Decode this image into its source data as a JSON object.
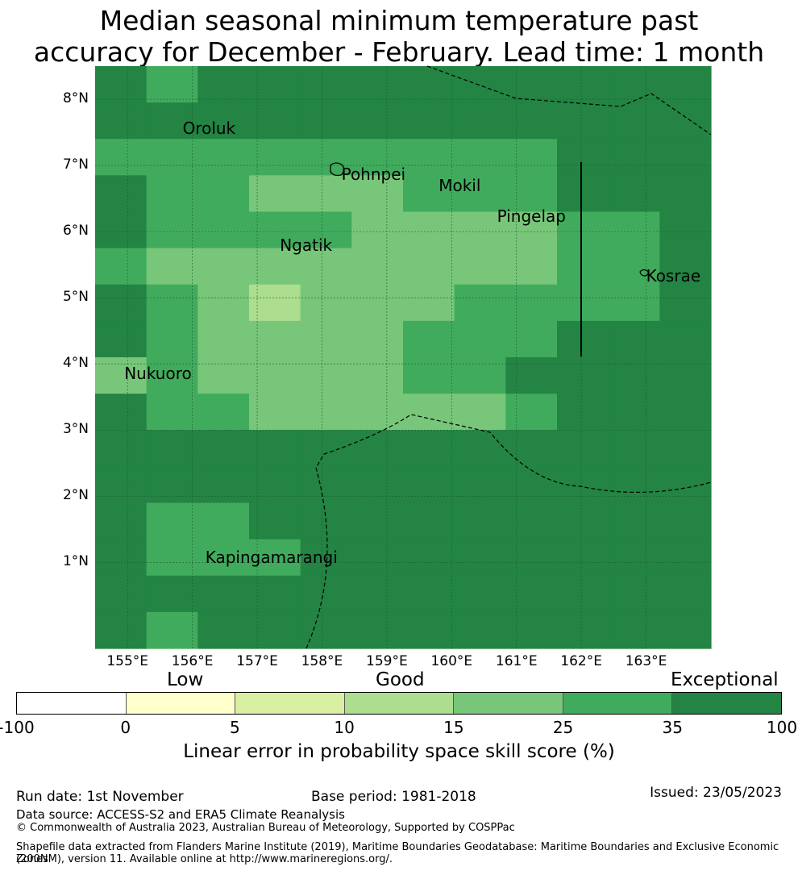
{
  "title": {
    "line1": "Median seasonal minimum temperature past",
    "line2": "accuracy for December - February. Lead time: 1 month"
  },
  "map": {
    "lon_range": [
      154.5,
      164.0
    ],
    "lat_range": [
      -0.3,
      8.5
    ],
    "y_ticks": [
      {
        "lat": 8,
        "label": "8°N"
      },
      {
        "lat": 7,
        "label": "7°N"
      },
      {
        "lat": 6,
        "label": "6°N"
      },
      {
        "lat": 5,
        "label": "5°N"
      },
      {
        "lat": 4,
        "label": "4°N"
      },
      {
        "lat": 3,
        "label": "3°N"
      },
      {
        "lat": 2,
        "label": "2°N"
      },
      {
        "lat": 1,
        "label": "1°N"
      }
    ],
    "x_ticks": [
      {
        "lon": 155,
        "label": "155°E"
      },
      {
        "lon": 156,
        "label": "156°E"
      },
      {
        "lon": 157,
        "label": "157°E"
      },
      {
        "lon": 158,
        "label": "158°E"
      },
      {
        "lon": 159,
        "label": "159°E"
      },
      {
        "lon": 160,
        "label": "160°E"
      },
      {
        "lon": 161,
        "label": "161°E"
      },
      {
        "lon": 162,
        "label": "162°E"
      },
      {
        "lon": 163,
        "label": "163°E"
      }
    ],
    "grid": {
      "cols": 12,
      "rows": 16,
      "cell_classes": [
        [
          6,
          5,
          6,
          6,
          6,
          6,
          6,
          6,
          6,
          6,
          6,
          6
        ],
        [
          6,
          6,
          6,
          6,
          6,
          6,
          6,
          6,
          6,
          6,
          6,
          6
        ],
        [
          5,
          5,
          5,
          5,
          5,
          5,
          5,
          5,
          5,
          6,
          6,
          6
        ],
        [
          6,
          5,
          5,
          4,
          4,
          4,
          5,
          5,
          5,
          6,
          6,
          6
        ],
        [
          6,
          5,
          5,
          5,
          5,
          4,
          4,
          4,
          4,
          5,
          5,
          6
        ],
        [
          5,
          4,
          4,
          4,
          4,
          4,
          4,
          4,
          4,
          5,
          5,
          6
        ],
        [
          6,
          5,
          4,
          3,
          4,
          4,
          4,
          5,
          5,
          5,
          5,
          6
        ],
        [
          6,
          5,
          4,
          4,
          4,
          4,
          5,
          5,
          5,
          6,
          6,
          6
        ],
        [
          4,
          5,
          4,
          4,
          4,
          4,
          5,
          5,
          6,
          6,
          6,
          6
        ],
        [
          6,
          5,
          5,
          4,
          4,
          4,
          4,
          4,
          5,
          6,
          6,
          6
        ],
        [
          6,
          6,
          6,
          6,
          6,
          6,
          6,
          6,
          6,
          6,
          6,
          6
        ],
        [
          6,
          6,
          6,
          6,
          6,
          6,
          6,
          6,
          6,
          6,
          6,
          6
        ],
        [
          6,
          5,
          5,
          6,
          6,
          6,
          6,
          6,
          6,
          6,
          6,
          6
        ],
        [
          6,
          5,
          5,
          5,
          6,
          6,
          6,
          6,
          6,
          6,
          6,
          6
        ],
        [
          6,
          6,
          6,
          6,
          6,
          6,
          6,
          6,
          6,
          6,
          6,
          6
        ],
        [
          6,
          5,
          6,
          6,
          6,
          6,
          6,
          6,
          6,
          6,
          6,
          6
        ]
      ]
    },
    "places": [
      {
        "name": "Oroluk",
        "lon": 155.85,
        "lat": 7.55
      },
      {
        "name": "Pohnpei",
        "lon": 158.3,
        "lat": 6.85
      },
      {
        "name": "Mokil",
        "lon": 159.8,
        "lat": 6.68
      },
      {
        "name": "Pingelap",
        "lon": 160.7,
        "lat": 6.22
      },
      {
        "name": "Ngatik",
        "lon": 157.35,
        "lat": 5.78
      },
      {
        "name": "Kosrae",
        "lon": 163.0,
        "lat": 5.32
      },
      {
        "name": "Nukuoro",
        "lon": 154.95,
        "lat": 3.85
      },
      {
        "name": "Kapingamarangi",
        "lon": 156.2,
        "lat": 1.07
      }
    ]
  },
  "colorbar": {
    "word_low": "Low",
    "word_good": "Good",
    "word_exceptional": "Exceptional",
    "colors": [
      "#ffffff",
      "#ffffcc",
      "#d9f0a3",
      "#addd8e",
      "#78c679",
      "#41ab5d",
      "#238443"
    ],
    "ticks": [
      "-100",
      "0",
      "5",
      "10",
      "15",
      "25",
      "35",
      "100"
    ],
    "label": "Linear error in probability space skill score (%)"
  },
  "footer": {
    "run_date": "Run date: 1st November",
    "base_period": "Base period: 1981-2018",
    "issued": "Issued: 23/05/2023",
    "data_source": "Data source: ACCESS-S2 and ERA5 Climate Reanalysis",
    "copyright": "© Commonwealth of Australia 2023, Australian Bureau of Meteorology, Supported by COSPPac",
    "shapefile_line1": "Shapefile data extracted from Flanders Marine Institute (2019), Maritime Boundaries Geodatabase: Maritime Boundaries and Exclusive Economic Zones",
    "shapefile_line2": "(200NM), version 11. Available online at http://www.marineregions.org/."
  }
}
